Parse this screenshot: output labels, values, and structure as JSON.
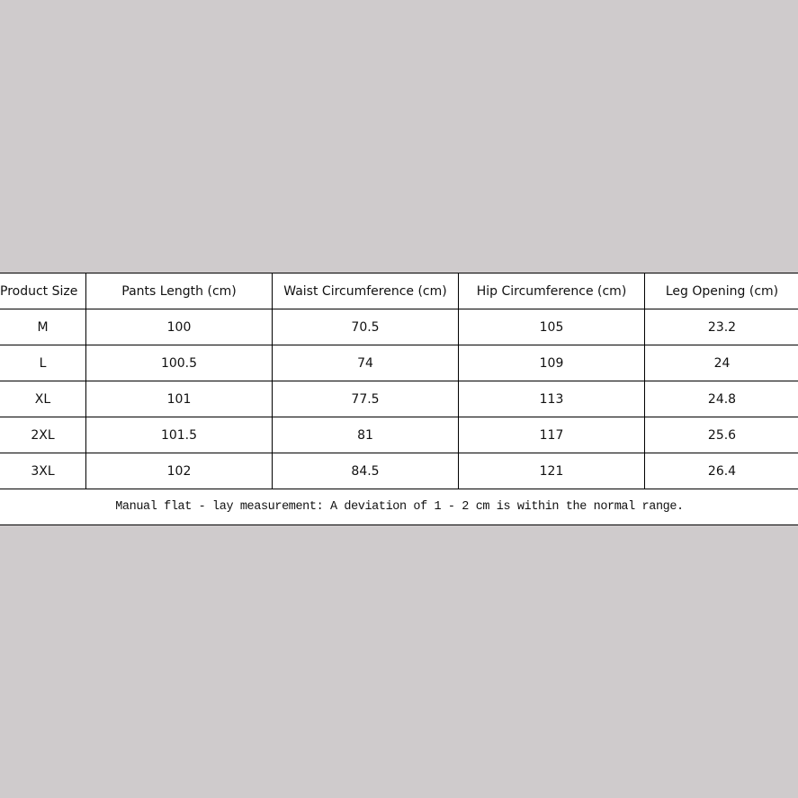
{
  "headers": [
    "Product Size",
    "Pants Length (cm)",
    "Waist Circumference (cm)",
    "Hip Circumference (cm)",
    "Leg Opening (cm)"
  ],
  "rows": [
    [
      "M",
      "100",
      "70.5",
      "105",
      "23.2"
    ],
    [
      "L",
      "100.5",
      "74",
      "109",
      "24"
    ],
    [
      "XL",
      "101",
      "77.5",
      "113",
      "24.8"
    ],
    [
      "2XL",
      "101.5",
      "81",
      "117",
      "25.6"
    ],
    [
      "3XL",
      "102",
      "84.5",
      "121",
      "26.4"
    ]
  ],
  "note": "Manual flat - lay measurement: A deviation of 1 - 2 cm is within the normal range."
}
